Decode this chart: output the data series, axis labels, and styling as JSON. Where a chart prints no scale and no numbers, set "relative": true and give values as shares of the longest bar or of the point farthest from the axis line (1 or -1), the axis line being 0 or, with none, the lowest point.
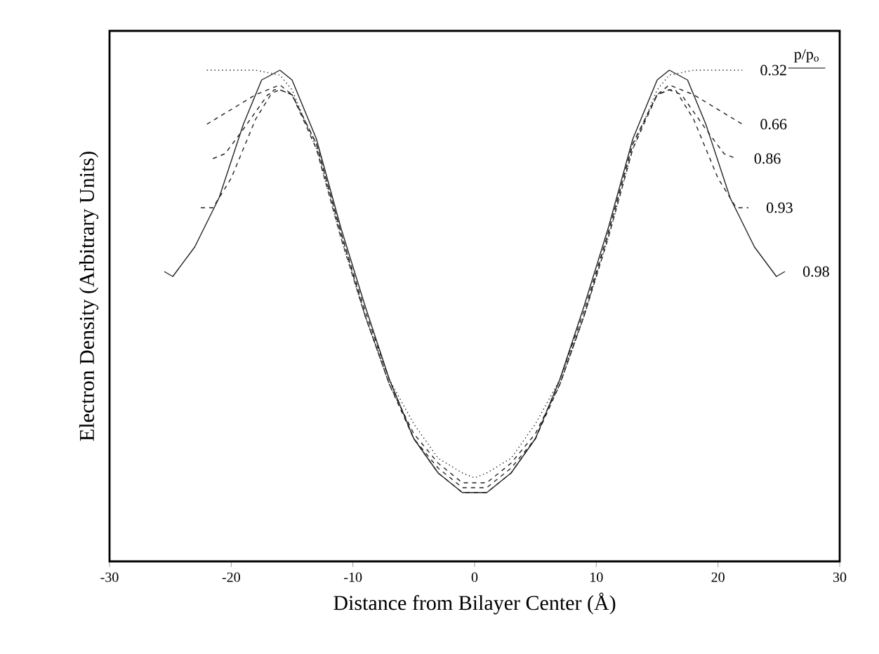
{
  "chart_data": {
    "type": "line",
    "relative": true,
    "xlabel": "Distance from Bilayer Center  (Å)",
    "ylabel": "Electron Density (Arbitrary Units)",
    "legend_title": "p/p$_{o}$",
    "xlim": [
      -30,
      30
    ],
    "xticks": [
      -30,
      -20,
      -10,
      0,
      10,
      20,
      30
    ],
    "series": [
      {
        "name": "0.32",
        "color": "#222222",
        "line_style": "dotted",
        "x": [
          -22,
          -18,
          -16,
          -15,
          -13,
          -11,
          -9,
          -7,
          -5,
          -3,
          -1,
          0,
          1,
          3,
          5,
          7,
          9,
          11,
          13,
          15,
          16,
          18,
          22
        ],
        "values": [
          1.0,
          1.0,
          0.99,
          0.96,
          0.84,
          0.66,
          0.5,
          0.37,
          0.28,
          0.21,
          0.18,
          0.17,
          0.18,
          0.21,
          0.28,
          0.37,
          0.5,
          0.66,
          0.84,
          0.96,
          0.99,
          1.0,
          1.0
        ]
      },
      {
        "name": "0.66",
        "color": "#222222",
        "line_style": "dashed",
        "x": [
          -22,
          -20,
          -18,
          -16,
          -15,
          -13,
          -11,
          -9,
          -7,
          -5,
          -3,
          -1,
          0,
          1,
          3,
          5,
          7,
          9,
          11,
          13,
          15,
          16,
          18,
          20,
          22
        ],
        "values": [
          0.89,
          0.92,
          0.95,
          0.97,
          0.95,
          0.84,
          0.66,
          0.5,
          0.36,
          0.26,
          0.2,
          0.16,
          0.16,
          0.16,
          0.2,
          0.26,
          0.36,
          0.5,
          0.66,
          0.84,
          0.95,
          0.97,
          0.95,
          0.92,
          0.89
        ]
      },
      {
        "name": "0.86",
        "color": "#222222",
        "line_style": "dashed",
        "x": [
          -21.5,
          -20.5,
          -19,
          -17,
          -16,
          -15,
          -13,
          -11,
          -9,
          -7,
          -5,
          -3,
          -1,
          0,
          1,
          3,
          5,
          7,
          9,
          11,
          13,
          15,
          16,
          17,
          19,
          20.5,
          21.5
        ],
        "values": [
          0.82,
          0.83,
          0.88,
          0.95,
          0.96,
          0.95,
          0.85,
          0.67,
          0.5,
          0.36,
          0.25,
          0.19,
          0.15,
          0.15,
          0.15,
          0.19,
          0.25,
          0.36,
          0.5,
          0.67,
          0.85,
          0.95,
          0.96,
          0.95,
          0.88,
          0.83,
          0.82
        ]
      },
      {
        "name": "0.93",
        "color": "#222222",
        "line_style": "dashed",
        "x": [
          -22.5,
          -21.5,
          -20,
          -18,
          -16.5,
          -16,
          -15,
          -13,
          -11,
          -9,
          -7,
          -5,
          -3,
          -1,
          0,
          1,
          3,
          5,
          7,
          9,
          11,
          13,
          15,
          16,
          16.5,
          18,
          20,
          21.5,
          22.5
        ],
        "values": [
          0.72,
          0.72,
          0.78,
          0.9,
          0.96,
          0.96,
          0.95,
          0.85,
          0.67,
          0.51,
          0.37,
          0.25,
          0.18,
          0.14,
          0.14,
          0.14,
          0.18,
          0.25,
          0.37,
          0.51,
          0.67,
          0.85,
          0.95,
          0.96,
          0.96,
          0.9,
          0.78,
          0.72,
          0.72
        ]
      },
      {
        "name": "0.98",
        "color": "#222222",
        "line_style": "solid",
        "x": [
          -25.5,
          -24.8,
          -23,
          -21,
          -19,
          -17.5,
          -16,
          -15,
          -13,
          -11,
          -9,
          -7,
          -5,
          -3,
          -1,
          0,
          1,
          3,
          5,
          7,
          9,
          11,
          13,
          15,
          16,
          17.5,
          19,
          21,
          23,
          24.8,
          25.5
        ],
        "values": [
          0.59,
          0.58,
          0.64,
          0.74,
          0.89,
          0.98,
          1.0,
          0.98,
          0.86,
          0.68,
          0.52,
          0.37,
          0.25,
          0.18,
          0.14,
          0.14,
          0.14,
          0.18,
          0.25,
          0.37,
          0.52,
          0.68,
          0.86,
          0.98,
          1.0,
          0.98,
          0.89,
          0.74,
          0.64,
          0.58,
          0.59
        ]
      }
    ]
  }
}
